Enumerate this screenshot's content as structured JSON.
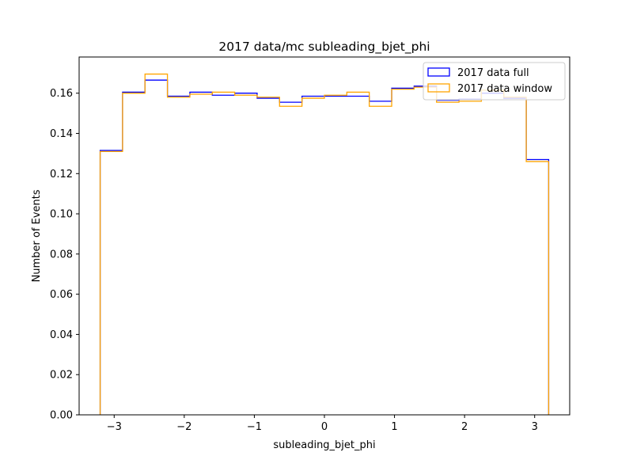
{
  "chart_data": {
    "type": "step",
    "title": "2017 data/mc subleading_bjet_phi",
    "xlabel": "subleading_bjet_phi",
    "ylabel": "Number of Events",
    "xlim": [
      -3.5,
      3.5
    ],
    "ylim": [
      0.0,
      0.178
    ],
    "xticks": [
      -3,
      -2,
      -1,
      0,
      1,
      2,
      3
    ],
    "xtick_labels": [
      "−3",
      "−2",
      "−1",
      "0",
      "1",
      "2",
      "3"
    ],
    "yticks": [
      0.0,
      0.02,
      0.04,
      0.06,
      0.08,
      0.1,
      0.12,
      0.14,
      0.16
    ],
    "ytick_labels": [
      "0.00",
      "0.02",
      "0.04",
      "0.06",
      "0.08",
      "0.10",
      "0.12",
      "0.14",
      "0.16"
    ],
    "bin_edges": [
      -3.2,
      -2.88,
      -2.56,
      -2.24,
      -1.92,
      -1.6,
      -1.28,
      -0.96,
      -0.64,
      -0.32,
      0.0,
      0.32,
      0.64,
      0.96,
      1.28,
      1.6,
      1.92,
      2.24,
      2.56,
      2.88,
      3.2
    ],
    "legend_position": "upper right",
    "grid": false,
    "series": [
      {
        "name": "2017 data full",
        "color": "#0000ff",
        "values": [
          0.1315,
          0.1605,
          0.1665,
          0.1585,
          0.1605,
          0.159,
          0.16,
          0.1575,
          0.1555,
          0.1585,
          0.1585,
          0.1585,
          0.156,
          0.1625,
          0.1635,
          0.1565,
          0.157,
          0.16,
          0.1575,
          0.127
        ]
      },
      {
        "name": "2017 data window",
        "color": "#ffa500",
        "values": [
          0.131,
          0.16,
          0.1695,
          0.158,
          0.1595,
          0.1605,
          0.159,
          0.158,
          0.1535,
          0.1575,
          0.159,
          0.1605,
          0.1535,
          0.162,
          0.163,
          0.1555,
          0.156,
          0.1615,
          0.158,
          0.126
        ]
      }
    ]
  }
}
